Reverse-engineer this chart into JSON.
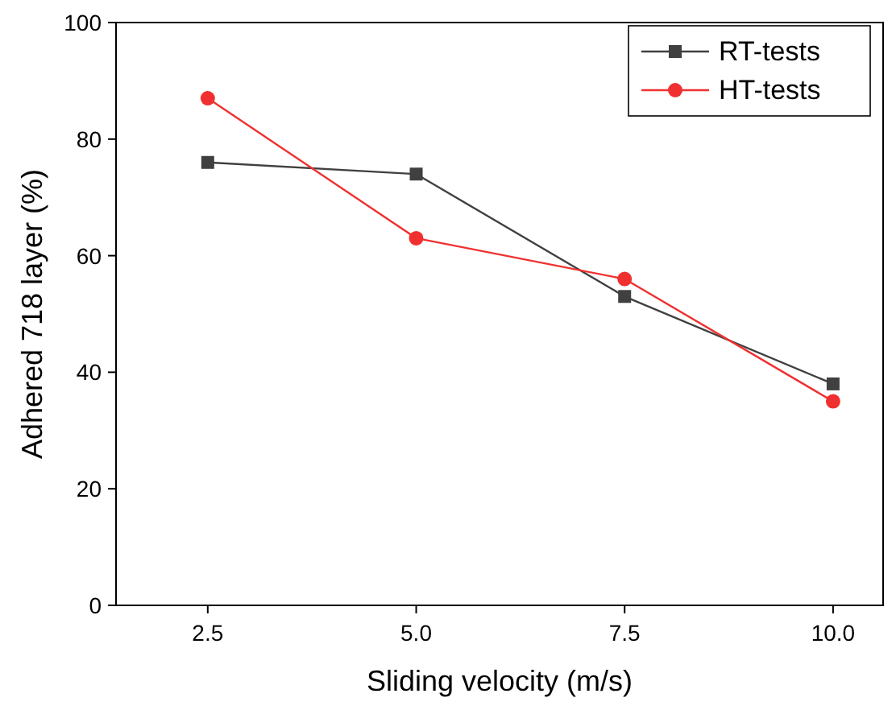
{
  "chart_data": {
    "type": "line",
    "xlabel": "Sliding velocity (m/s)",
    "ylabel": "Adhered 718 layer (%)",
    "x": [
      2.5,
      5,
      7.5,
      10
    ],
    "xlim": [
      1.4,
      10.6
    ],
    "xticks": [
      2.5,
      {
        "value": 5,
        "label": "5.0"
      },
      7.5,
      {
        "value": 10,
        "label": "10.0"
      }
    ],
    "ylim": [
      0,
      100
    ],
    "yticks": [
      0,
      20,
      40,
      60,
      80,
      100
    ],
    "series": [
      {
        "name": "RT-tests",
        "color": "#404040",
        "marker": "square",
        "values": [
          76,
          74,
          53,
          38
        ]
      },
      {
        "name": "HT-tests",
        "color": "#f03030",
        "marker": "circle",
        "values": [
          87,
          63,
          56,
          35
        ]
      }
    ],
    "legend": "top right",
    "grid": false,
    "line_style": "solid"
  }
}
